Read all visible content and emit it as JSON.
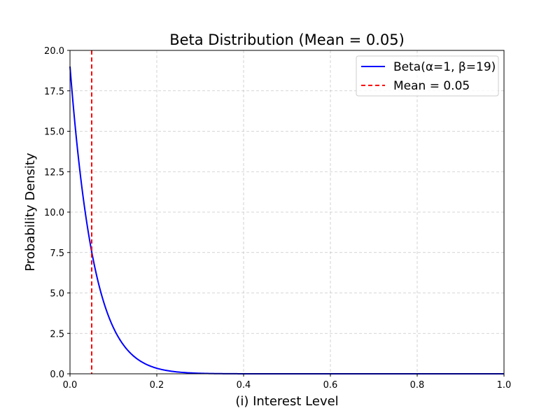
{
  "chart_data": {
    "type": "line",
    "title": "Beta Distribution (Mean = 0.05)",
    "xlabel": "(i) Interest Level",
    "ylabel": "Probability Density",
    "xlim": [
      0.0,
      1.0
    ],
    "ylim": [
      0.0,
      20.0
    ],
    "xticks": [
      "0.0",
      "0.2",
      "0.4",
      "0.6",
      "0.8",
      "1.0"
    ],
    "yticks": [
      "0.0",
      "2.5",
      "5.0",
      "7.5",
      "10.0",
      "12.5",
      "15.0",
      "17.5",
      "20.0"
    ],
    "grid": true,
    "legend_position": "top-right",
    "series": [
      {
        "name": "Beta(α=1, β=19)",
        "color": "#0000ff",
        "style": "solid",
        "x": [
          0.0,
          0.01,
          0.02,
          0.03,
          0.04,
          0.05,
          0.06,
          0.08,
          0.1,
          0.12,
          0.15,
          0.2,
          0.25,
          0.3,
          0.35,
          0.4,
          0.5,
          0.6,
          0.7,
          0.8,
          0.9,
          1.0
        ],
        "y": [
          19.0,
          15.88,
          13.26,
          11.06,
          9.21,
          7.68,
          6.39,
          4.41,
          3.04,
          2.08,
          1.17,
          0.34,
          0.081,
          0.022,
          0.0053,
          0.0012,
          4e-05,
          0.0,
          0.0,
          0.0,
          0.0,
          0.0
        ]
      },
      {
        "name": "Mean = 0.05",
        "color": "#ff0000",
        "style": "dashed",
        "vline_x": 0.05
      }
    ]
  }
}
